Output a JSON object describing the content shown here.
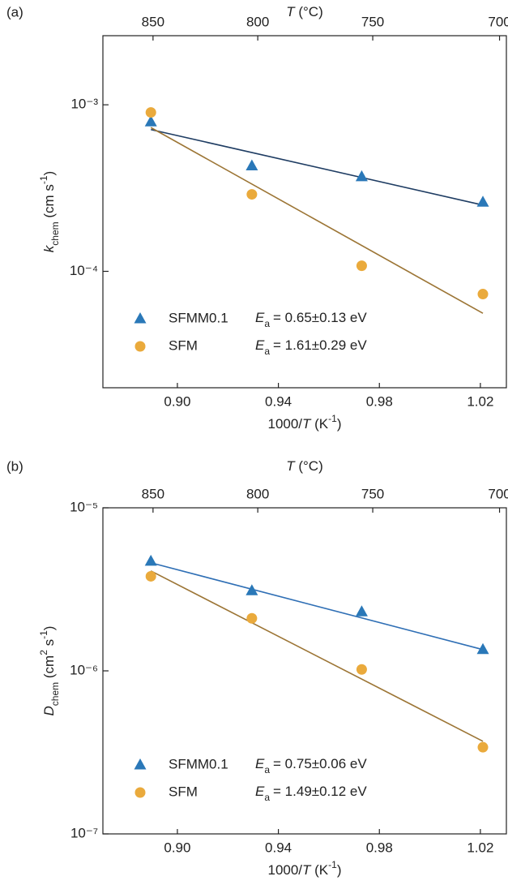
{
  "chart_data": [
    {
      "type": "scatter",
      "panel_label": "(a)",
      "log_y": true,
      "xlabel": {
        "pre": "1000/",
        "var": "T",
        "unit": " (K",
        "sup": "-1",
        "close": ")"
      },
      "x2label": {
        "var": "T",
        "unit": " (°C)"
      },
      "ylabel": {
        "var": "k",
        "sub": "chem",
        "unit": " (cm s",
        "sup": "-1",
        "close": ")"
      },
      "xlim": [
        0.8705,
        1.0303
      ],
      "xticks": [
        {
          "value": 0.9,
          "label": "0.90"
        },
        0.94,
        0.98,
        1.02
      ],
      "x2ticks": [
        850,
        800,
        750,
        700
      ],
      "ylim": [
        2e-05,
        0.0026
      ],
      "yticks": [
        {
          "value": 0.0001,
          "label": "10⁻⁴"
        },
        {
          "value": 0.001,
          "label": "10⁻³"
        }
      ],
      "ea_symbol": "E",
      "ea_sub": "a",
      "x": [
        0.8895,
        0.9295,
        0.973,
        1.021
      ],
      "series": [
        {
          "name": "SFMM0.1",
          "marker": "triangle",
          "color": "#2a78b8",
          "values": [
            0.00079,
            0.00043,
            0.00037,
            0.00026
          ],
          "fit_color": "#1f3d63",
          "fit_x": [
            0.8895,
            1.021
          ],
          "fit_values": [
            0.00071,
            0.00025
          ],
          "ea": "= 0.65±0.13  eV"
        },
        {
          "name": "SFM",
          "marker": "circle",
          "color": "#eaaa3c",
          "values": [
            0.0009,
            0.00029,
            0.000108,
            7.3e-05
          ],
          "fit_color": "#9c7535",
          "fit_x": [
            0.8895,
            1.021
          ],
          "fit_values": [
            0.00073,
            5.6e-05
          ],
          "ea": "= 1.61±0.29  eV"
        }
      ]
    },
    {
      "type": "scatter",
      "panel_label": "(b)",
      "log_y": true,
      "xlabel": {
        "pre": "1000/",
        "var": "T",
        "unit": " (K",
        "sup": "-1",
        "close": ")"
      },
      "x2label": {
        "var": "T",
        "unit": " (°C)"
      },
      "ylabel": {
        "var": "D",
        "sub": "chem",
        "unit": " (cm",
        "sup": "2",
        "unit2": " s",
        "sup2": "-1",
        "close": ")"
      },
      "xlim": [
        0.8705,
        1.0303
      ],
      "xticks": [
        {
          "value": 0.9,
          "label": "0.90"
        },
        0.94,
        0.98,
        1.02
      ],
      "x2ticks": [
        850,
        800,
        750,
        700
      ],
      "ylim": [
        1e-07,
        1e-05
      ],
      "yticks": [
        {
          "value": 1e-07,
          "label": "10⁻⁷"
        },
        {
          "value": 1e-06,
          "label": "10⁻⁶"
        },
        {
          "value": 1e-05,
          "label": "10⁻⁵"
        }
      ],
      "ea_symbol": "E",
      "ea_sub": "a",
      "x": [
        0.8895,
        0.9295,
        0.973,
        1.021
      ],
      "series": [
        {
          "name": "SFMM0.1",
          "marker": "triangle",
          "color": "#2a78b8",
          "values": [
            4.7e-06,
            3.1e-06,
            2.3e-06,
            1.35e-06
          ],
          "fit_color": "#2f6fb5",
          "fit_x": [
            0.8895,
            1.021
          ],
          "fit_values": [
            4.6e-06,
            1.35e-06
          ],
          "ea": "= 0.75±0.06  eV"
        },
        {
          "name": "SFM",
          "marker": "circle",
          "color": "#eaaa3c",
          "values": [
            3.8e-06,
            2.1e-06,
            1.02e-06,
            3.4e-07
          ],
          "fit_color": "#9c7535",
          "fit_x": [
            0.8895,
            1.021
          ],
          "fit_values": [
            4.1e-06,
            3.7e-07
          ],
          "ea": "= 1.49±0.12  eV"
        }
      ]
    }
  ]
}
